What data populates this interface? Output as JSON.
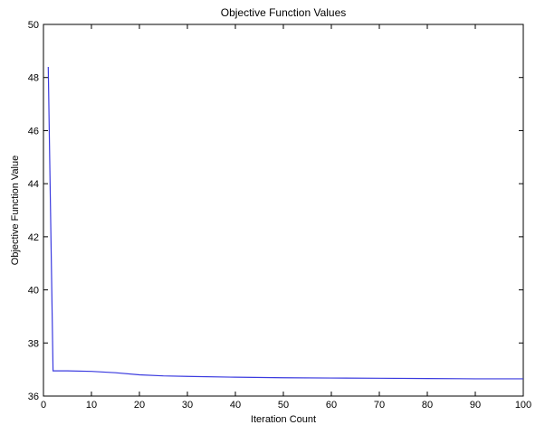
{
  "chart_data": {
    "type": "line",
    "title": "Objective Function Values",
    "xlabel": "Iteration Count",
    "ylabel": "Objective Function Value",
    "xlim": [
      0,
      100
    ],
    "ylim": [
      36,
      50
    ],
    "xticks": [
      0,
      10,
      20,
      30,
      40,
      50,
      60,
      70,
      80,
      90,
      100
    ],
    "yticks": [
      36,
      38,
      40,
      42,
      44,
      46,
      48,
      50
    ],
    "grid": false,
    "series": [
      {
        "color": "#3a3adf",
        "x": [
          1,
          2,
          5,
          10,
          15,
          20,
          25,
          30,
          40,
          50,
          60,
          70,
          80,
          90,
          100
        ],
        "y": [
          48.4,
          36.95,
          36.95,
          36.93,
          36.88,
          36.8,
          36.76,
          36.74,
          36.71,
          36.69,
          36.68,
          36.67,
          36.66,
          36.65,
          36.65
        ]
      }
    ]
  }
}
